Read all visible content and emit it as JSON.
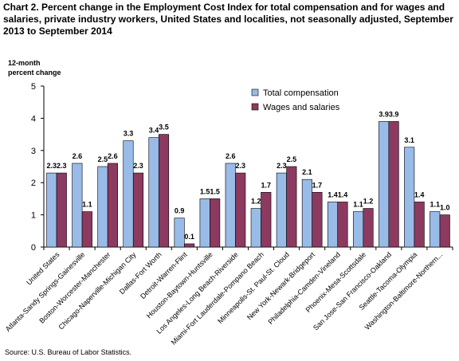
{
  "title": "Chart 2. Percent change in the Employment Cost Index for total compensation and for wages and salaries, private industry workers, United States and localities, not seasonally adjusted, September 2013 to September 2014",
  "source": "Source: U.S. Bureau of Labor Statistics.",
  "colors": {
    "total": "#99bbe8",
    "wages": "#8c3a5f",
    "bar_edge": "#000000"
  },
  "chart_data": {
    "type": "bar",
    "title": "Chart 2. Percent change in the Employment Cost Index for total compensation and for wages and salaries, private industry workers, United States and localities, not seasonally adjusted, September 2013 to September 2014",
    "xlabel": "",
    "ylabel_line1": "12-month",
    "ylabel_line2": "percent change",
    "ylim": [
      0,
      5
    ],
    "yticks": [
      "0",
      "1",
      "2",
      "3",
      "4",
      "5"
    ],
    "legend_position": "top-center",
    "grid": false,
    "categories": [
      "United States",
      "Atlanta-Sandy Springs-Gainesville",
      "Boston-Worcester-Manchester",
      "Chicago-Naperville-Michigan City",
      "Dallas-Fort Worth",
      "Detroit-Warren-Flint",
      "Houston-Baytown-Huntsville",
      "Los Angeles-Long Beach-Riverside",
      "Miami-Fort Lauderdale-Pompano Beach",
      "Minneapolis-St. Paul-St. Cloud",
      "New York-Newark-Bridgeport",
      "Philadelphia-Camden-Vineland",
      "Phoenix-Mesa-Scottsdale",
      "San Jose-San Francisco-Oakland",
      "Seattle-Tacoma-Olympia",
      "Washington-Baltimore-Northern..."
    ],
    "series": [
      {
        "name": "Total compensation",
        "values": [
          2.3,
          2.6,
          2.5,
          3.3,
          3.4,
          0.9,
          1.5,
          2.6,
          1.2,
          2.3,
          2.1,
          1.4,
          1.1,
          3.9,
          3.1,
          1.1
        ]
      },
      {
        "name": "Wages and salaries",
        "values": [
          2.3,
          1.1,
          2.6,
          2.3,
          3.5,
          0.1,
          1.5,
          2.3,
          1.7,
          2.5,
          1.7,
          1.4,
          1.2,
          3.9,
          1.4,
          1.0
        ]
      }
    ]
  }
}
